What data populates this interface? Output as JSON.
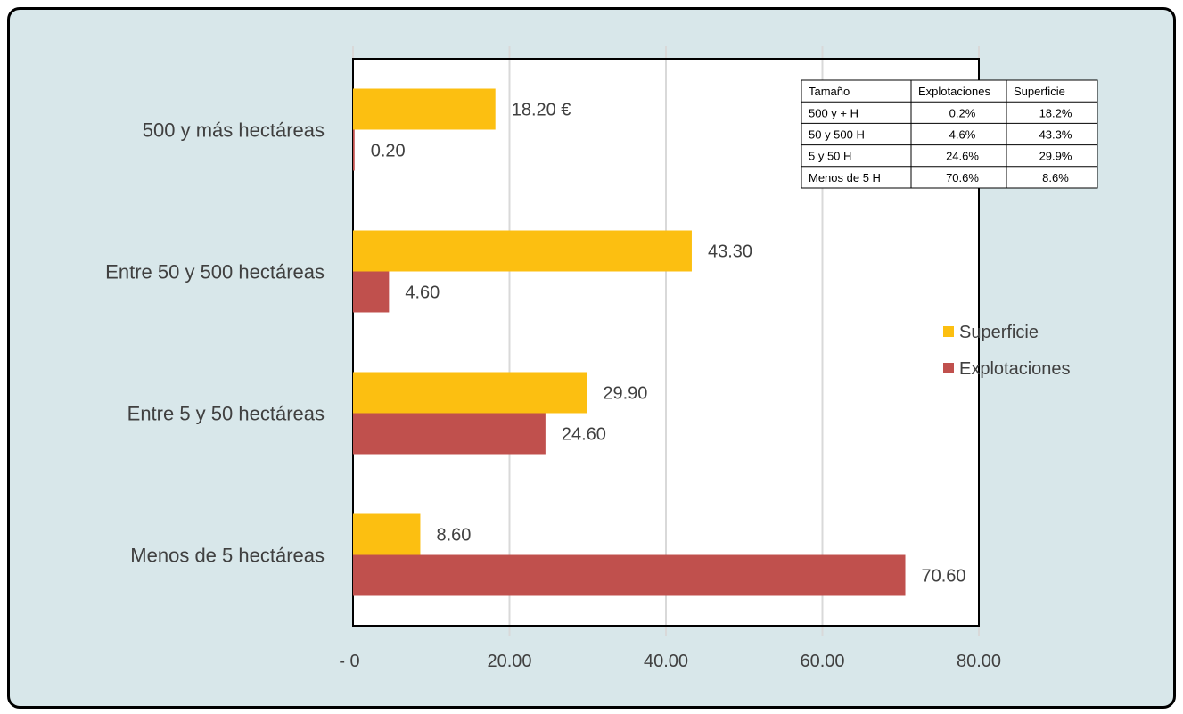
{
  "chart_data": {
    "type": "bar",
    "orientation": "horizontal",
    "categories": [
      "500 y más hectáreas",
      "Entre 50 y 500 hectáreas",
      "Entre 5 y 50 hectáreas",
      "Menos de 5 hectáreas"
    ],
    "series": [
      {
        "name": "Superficie",
        "color": "#fcbf11",
        "values": [
          18.2,
          43.3,
          29.9,
          8.6
        ],
        "labels": [
          "18.20 €",
          "43.30",
          "29.90",
          "8.60"
        ]
      },
      {
        "name": "Explotaciones",
        "color": "#c0504d",
        "values": [
          0.2,
          4.6,
          24.6,
          70.6
        ],
        "labels": [
          "0.20",
          "4.60",
          "24.60",
          "70.60"
        ]
      }
    ],
    "xlim": [
      0,
      80
    ],
    "xticks": [
      0,
      20,
      40,
      60,
      80
    ],
    "xtick_labels": [
      "-  0",
      "20.00",
      "40.00",
      "60.00",
      "80.00"
    ],
    "grid": true,
    "legend": "right",
    "table": {
      "headers": [
        "Tamaño",
        "Explotaciones",
        "Superficie"
      ],
      "rows": [
        [
          "500 y + H",
          "0.2%",
          "18.2%"
        ],
        [
          "50 y 500 H",
          "4.6%",
          "43.3%"
        ],
        [
          "5 y 50 H",
          "24.6%",
          "29.9%"
        ],
        [
          "Menos de 5 H",
          "70.6%",
          "8.6%"
        ]
      ]
    }
  }
}
